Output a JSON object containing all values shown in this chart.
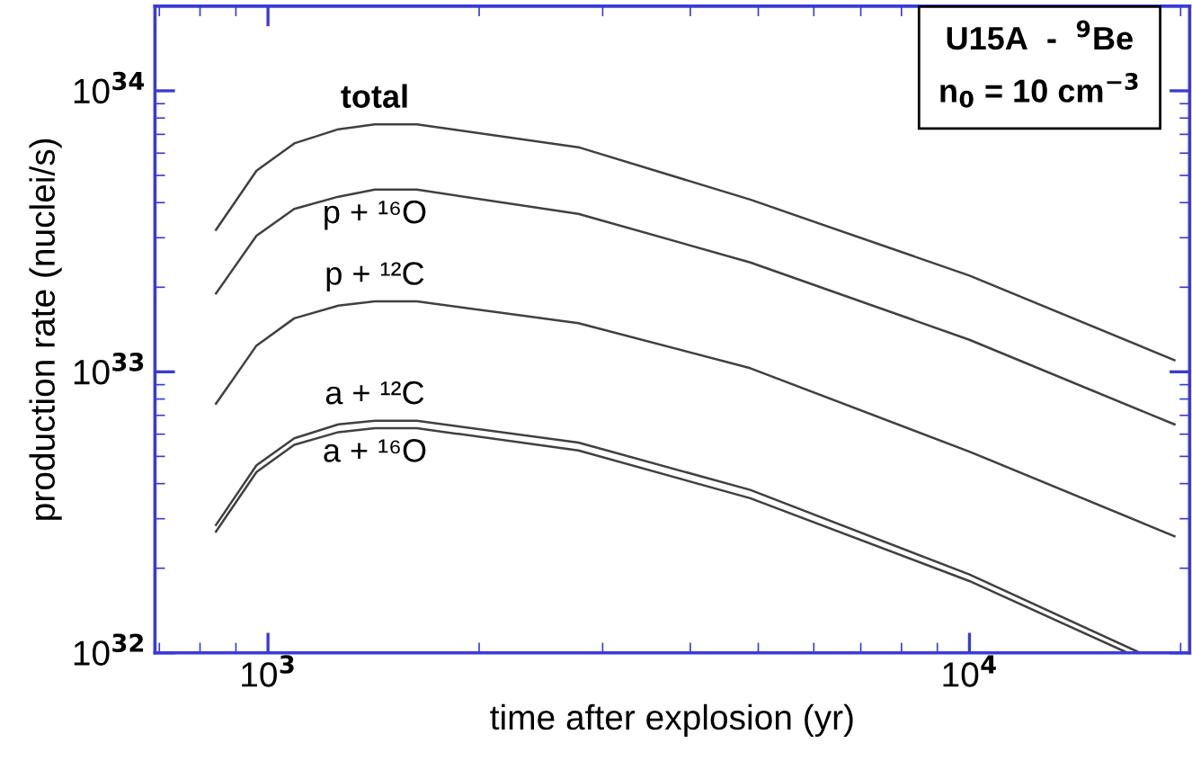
{
  "chart_data": {
    "type": "line",
    "xlabel": "time after explosion (yr)",
    "ylabel": "production rate (nuclei/s)",
    "log": "xy",
    "xlim": [
      690,
      20600
    ],
    "ylim": [
      1e+32,
      2e+34
    ],
    "xticks": [
      {
        "value": 1000,
        "label": "10$^{3}$"
      },
      {
        "value": 10000,
        "label": "10$^{4}$"
      }
    ],
    "yticks": [
      {
        "value": 1e+32,
        "label": "10$^{32}$"
      },
      {
        "value": 1e+33,
        "label": "10$^{33}$"
      },
      {
        "value": 1e+34,
        "label": "10$^{34}$"
      }
    ],
    "grid": false,
    "legend": false,
    "marker": "none",
    "line_style": "solid",
    "annotations": [
      "U15A  -  $^{9}$Be",
      "n$_{0}$ = 10 cm$^{−3}$"
    ],
    "series": [
      {
        "name": "total",
        "color": "#404040",
        "x": [
          843,
          963,
          1090,
          1260,
          1420,
          1630,
          2770,
          4870,
          10000,
          19600
        ],
        "values": [
          3.2e+33,
          5.2e+33,
          6.5e+33,
          7.3e+33,
          7.6e+33,
          7.6e+33,
          6.3e+33,
          4.1e+33,
          2.2e+33,
          1.1e+33
        ]
      },
      {
        "name": "p + ¹⁶O",
        "color": "#404040",
        "x": [
          843,
          963,
          1090,
          1260,
          1420,
          1630,
          2770,
          4870,
          10000,
          19600
        ],
        "values": [
          1.9e+33,
          3.05e+33,
          3.8e+33,
          4.2e+33,
          4.45e+33,
          4.45e+33,
          3.65e+33,
          2.45e+33,
          1.3e+33,
          6.5e+32
        ]
      },
      {
        "name": "p + ¹²C",
        "color": "#404040",
        "x": [
          843,
          963,
          1090,
          1260,
          1420,
          1630,
          2770,
          4870,
          10000,
          19600
        ],
        "values": [
          7.7e+32,
          1.24e+33,
          1.55e+33,
          1.72e+33,
          1.78e+33,
          1.78e+33,
          1.49e+33,
          1.03e+33,
          5.2e+32,
          2.6e+32
        ]
      },
      {
        "name": "a + ¹²C",
        "color": "#404040",
        "x": [
          843,
          963,
          1090,
          1260,
          1420,
          1630,
          2770,
          4870,
          10000,
          17500
        ],
        "values": [
          2.85e+32,
          4.65e+32,
          5.8e+32,
          6.5e+32,
          6.7e+32,
          6.7e+32,
          5.6e+32,
          3.8e+32,
          1.9e+32,
          1e+32
        ]
      },
      {
        "name": "a + ¹⁶O",
        "color": "#404040",
        "x": [
          843,
          963,
          1090,
          1260,
          1420,
          1630,
          2770,
          4870,
          10000,
          16800
        ],
        "values": [
          2.7e+32,
          4.4e+32,
          5.5e+32,
          6.1e+32,
          6.3e+32,
          6.3e+32,
          5.25e+32,
          3.55e+32,
          1.8e+32,
          1e+32
        ]
      }
    ]
  }
}
